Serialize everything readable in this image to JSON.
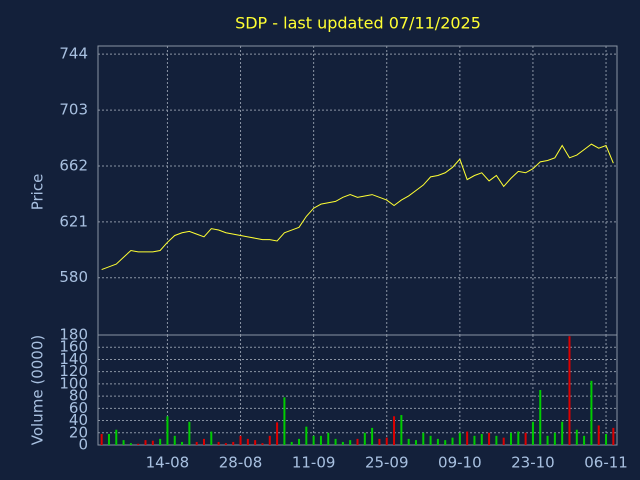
{
  "chart_data": {
    "type": "line",
    "title": "SDP - last updated 07/11/2025",
    "ylabel": "Price",
    "color": "#ffff33",
    "grid": true,
    "categories": [
      null,
      null,
      null,
      null,
      null,
      null,
      null,
      null,
      null,
      "14-08",
      null,
      null,
      null,
      null,
      null,
      null,
      null,
      null,
      null,
      "28-08",
      null,
      null,
      null,
      null,
      null,
      null,
      null,
      null,
      null,
      "11-09",
      null,
      null,
      null,
      null,
      null,
      null,
      null,
      null,
      null,
      "25-09",
      null,
      null,
      null,
      null,
      null,
      null,
      null,
      null,
      null,
      "09-10",
      null,
      null,
      null,
      null,
      null,
      null,
      null,
      null,
      null,
      "23-10",
      null,
      null,
      null,
      null,
      null,
      null,
      null,
      null,
      null,
      "06-11",
      null
    ],
    "values": [
      586,
      588,
      590,
      595,
      600,
      599,
      599,
      599,
      600,
      606,
      611,
      613,
      614,
      612,
      610,
      616,
      615,
      613,
      612,
      611,
      610,
      609,
      608,
      608,
      607,
      613,
      615,
      617,
      625,
      631,
      634,
      635,
      636,
      639,
      641,
      639,
      640,
      641,
      639,
      637,
      633,
      637,
      640,
      644,
      648,
      654,
      655,
      657,
      661,
      667,
      652,
      655,
      657,
      651,
      655,
      647,
      653,
      658,
      657,
      660,
      665,
      666,
      668,
      677,
      668,
      670,
      674,
      678,
      675,
      677,
      664
    ],
    "ylim": [
      538,
      750
    ],
    "yticks": [
      580,
      621,
      662,
      703,
      744
    ],
    "volume": {
      "type": "bar",
      "ylabel": "Volume (0000)",
      "values": [
        18,
        18,
        25,
        8,
        3,
        2,
        8,
        7,
        10,
        47,
        15,
        5,
        38,
        5,
        10,
        22,
        5,
        3,
        5,
        15,
        10,
        8,
        3,
        15,
        37,
        78,
        5,
        10,
        30,
        15,
        15,
        20,
        10,
        5,
        8,
        10,
        20,
        28,
        10,
        12,
        47,
        49,
        10,
        8,
        20,
        15,
        10,
        8,
        12,
        20,
        22,
        15,
        18,
        20,
        15,
        12,
        20,
        22,
        20,
        38,
        90,
        15,
        20,
        38,
        178,
        25,
        15,
        105,
        32,
        18,
        28
      ],
      "colors": [
        "#dd0000",
        "#00cc00",
        "#00cc00",
        "#00cc00",
        "#00cc00",
        "#dd0000",
        "#dd0000",
        "#dd0000",
        "#00cc00",
        "#00cc00",
        "#00cc00",
        "#00cc00",
        "#00cc00",
        "#dd0000",
        "#dd0000",
        "#00cc00",
        "#dd0000",
        "#dd0000",
        "#dd0000",
        "#dd0000",
        "#dd0000",
        "#dd0000",
        "#dd0000",
        "#dd0000",
        "#dd0000",
        "#00cc00",
        "#00cc00",
        "#00cc00",
        "#00cc00",
        "#00cc00",
        "#00cc00",
        "#00cc00",
        "#00cc00",
        "#00cc00",
        "#00cc00",
        "#dd0000",
        "#00cc00",
        "#00cc00",
        "#dd0000",
        "#dd0000",
        "#dd0000",
        "#00cc00",
        "#00cc00",
        "#00cc00",
        "#00cc00",
        "#00cc00",
        "#00cc00",
        "#00cc00",
        "#00cc00",
        "#00cc00",
        "#dd0000",
        "#00cc00",
        "#00cc00",
        "#dd0000",
        "#00cc00",
        "#dd0000",
        "#00cc00",
        "#00cc00",
        "#dd0000",
        "#00cc00",
        "#00cc00",
        "#00cc00",
        "#00cc00",
        "#00cc00",
        "#dd0000",
        "#00cc00",
        "#00cc00",
        "#00cc00",
        "#dd0000",
        "#00cc00",
        "#dd0000"
      ],
      "ylim": [
        0,
        180
      ],
      "yticks": [
        0,
        20,
        40,
        60,
        80,
        100,
        120,
        140,
        160,
        180
      ]
    }
  }
}
